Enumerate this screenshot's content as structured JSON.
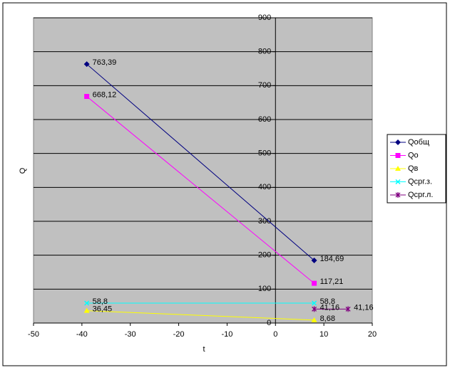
{
  "chart_data": {
    "type": "scatter",
    "x_label": "t",
    "y_label": "Q",
    "xlim": [
      -50,
      20
    ],
    "xticks": [
      -50,
      -40,
      -30,
      -20,
      -10,
      0,
      10,
      20
    ],
    "ylim": [
      0,
      900
    ],
    "yticks": [
      0,
      100,
      200,
      300,
      400,
      500,
      600,
      700,
      800,
      900
    ],
    "grid": true,
    "legend": "right",
    "series": [
      {
        "name": "Qобщ",
        "color": "#000080",
        "marker": "diamond",
        "x": [
          -39,
          8
        ],
        "values": [
          763.39,
          184.69
        ],
        "value_labels": [
          "763,39",
          "184,69"
        ]
      },
      {
        "name": "Qо",
        "color": "#ff00ff",
        "marker": "square",
        "x": [
          -39,
          8
        ],
        "values": [
          668.12,
          117.21
        ],
        "value_labels": [
          "668,12",
          "117,21"
        ]
      },
      {
        "name": "Qв",
        "color": "#ffff00",
        "marker": "triangle",
        "x": [
          -39,
          8
        ],
        "values": [
          36.45,
          8.68
        ],
        "value_labels": [
          "36,45",
          "8,68"
        ]
      },
      {
        "name": "Qсрг.з.",
        "color": "#00ffff",
        "marker": "x",
        "x": [
          -39,
          8
        ],
        "values": [
          58.8,
          58.8
        ],
        "value_labels": [
          "58,8",
          "58,8"
        ]
      },
      {
        "name": "Qсрг.л.",
        "color": "#800080",
        "marker": "star",
        "x": [
          8,
          15
        ],
        "values": [
          41.16,
          41.16
        ],
        "value_labels": [
          "41,16",
          "41,16"
        ]
      }
    ]
  }
}
